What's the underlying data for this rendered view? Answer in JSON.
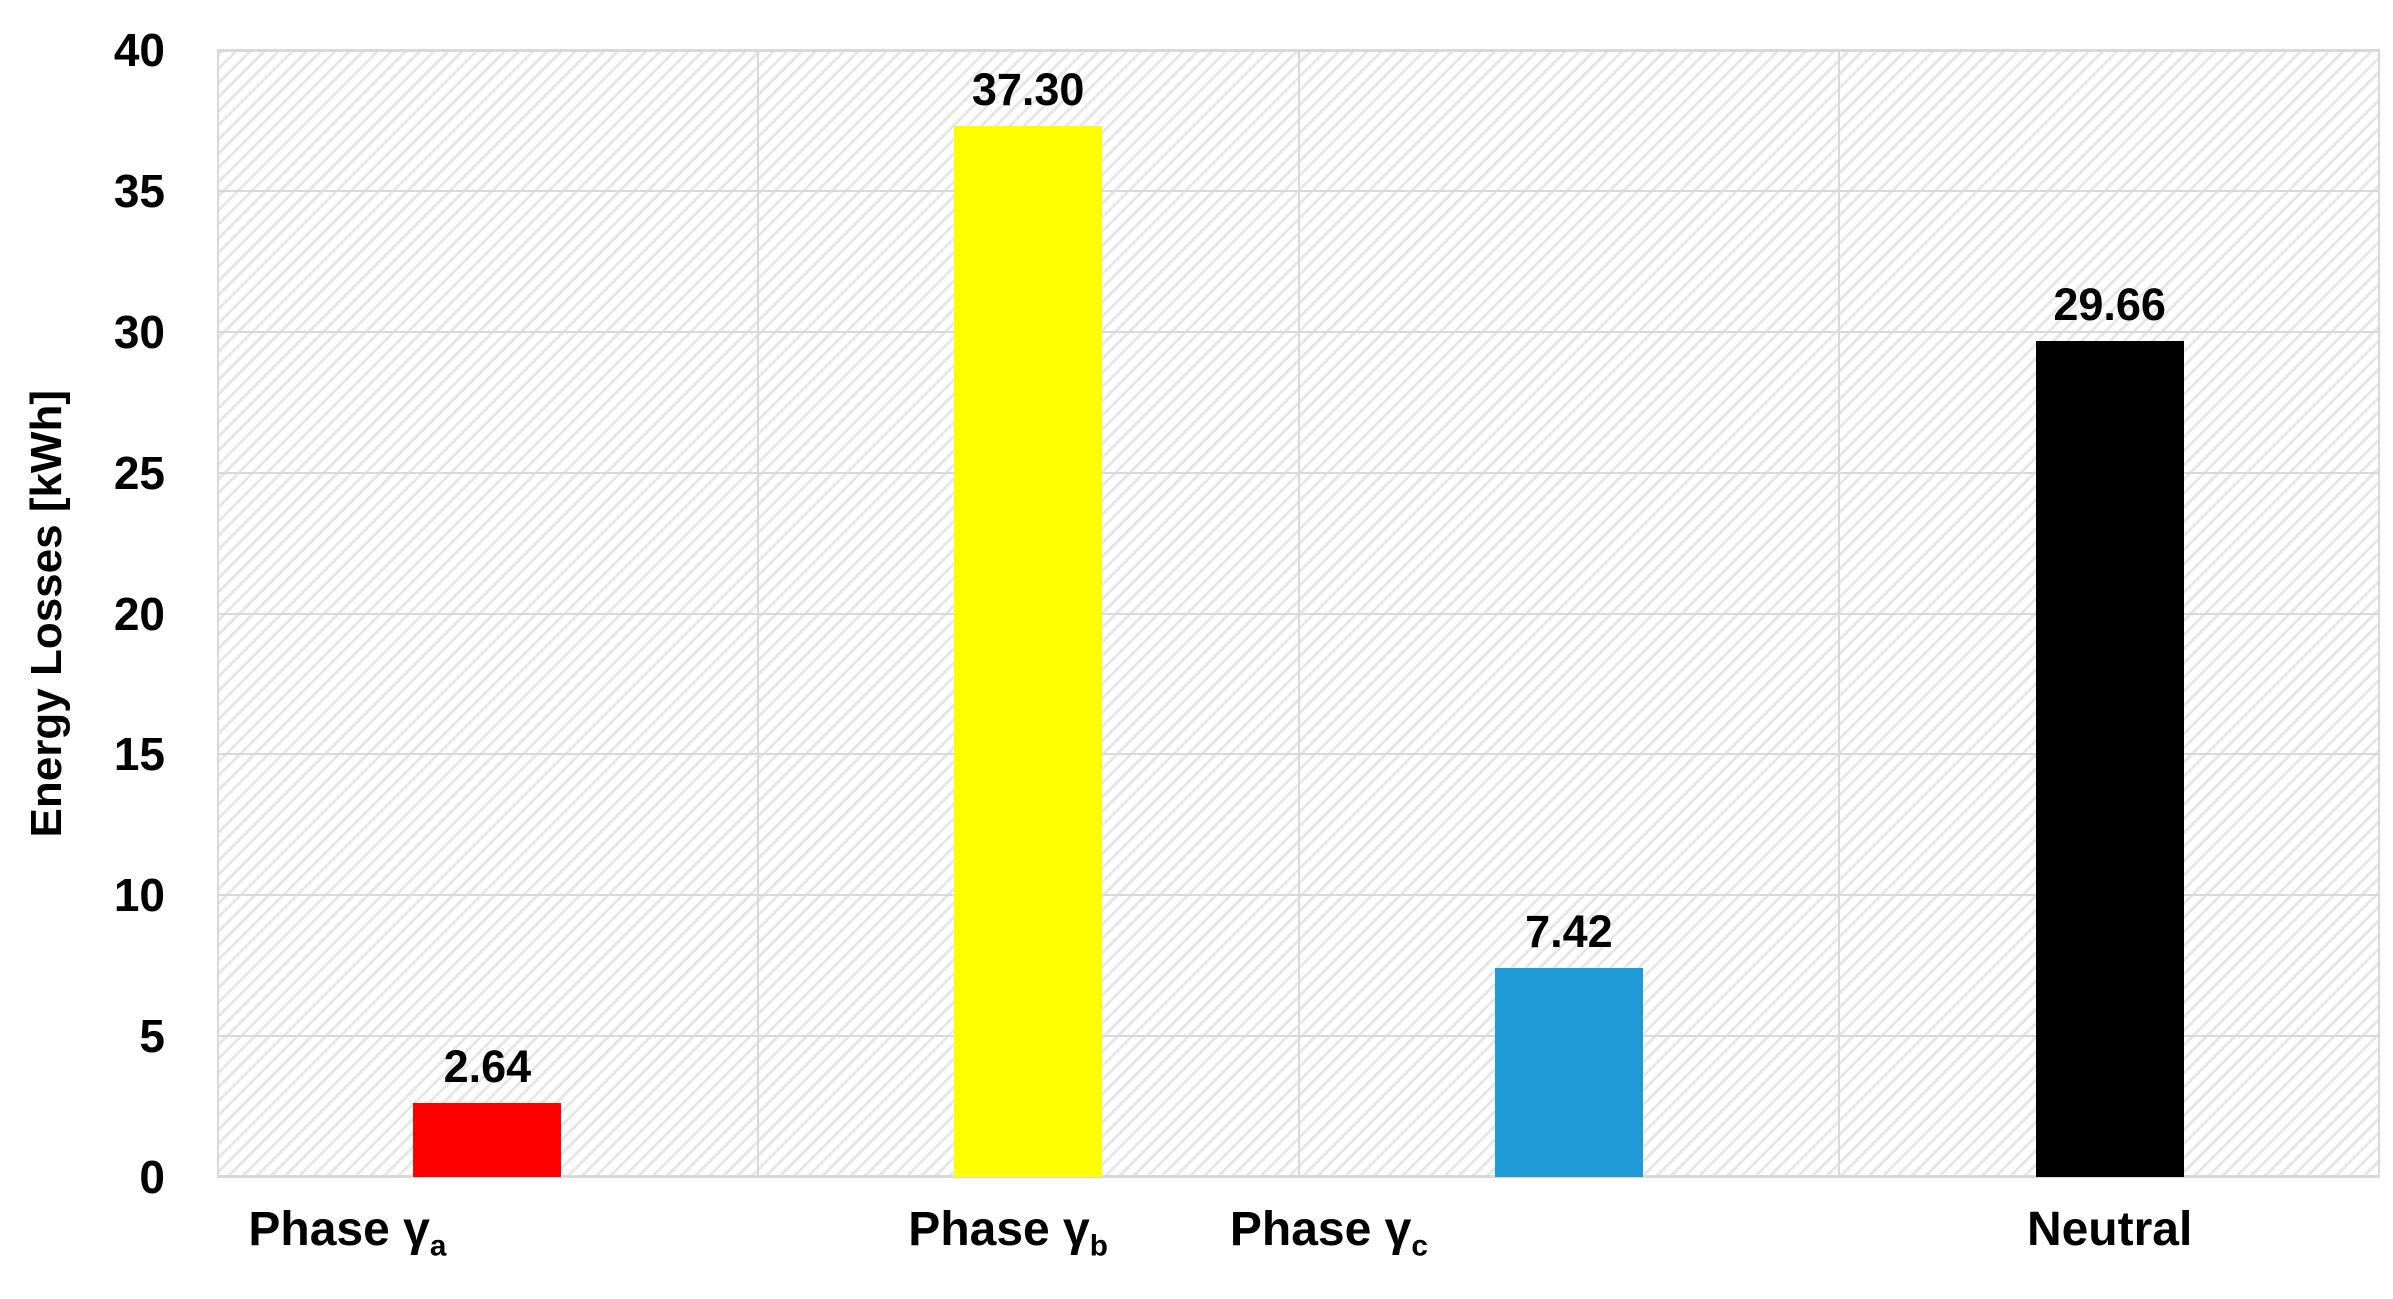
{
  "chart_data": {
    "type": "bar",
    "title": "",
    "xlabel": "",
    "ylabel": "Energy Losses [kWh]",
    "ylim": [
      0,
      40
    ],
    "ytick_step": 5,
    "yticks": [
      "0",
      "5",
      "10",
      "15",
      "20",
      "25",
      "30",
      "35",
      "40"
    ],
    "grid": "horizontal major gridlines + vertical category-boundary gridlines, light gray; plot area filled with light diagonal hatch pattern",
    "legend": "none",
    "categories": [
      {
        "text": "Phase γ",
        "sub": "a"
      },
      {
        "text": "Phase γ",
        "sub": "b"
      },
      {
        "text": "Phase γ",
        "sub": "c"
      },
      {
        "text": "Neutral",
        "sub": ""
      }
    ],
    "values": [
      2.64,
      37.3,
      7.42,
      29.66
    ],
    "value_labels": [
      "2.64",
      "37.30",
      "7.42",
      "29.66"
    ],
    "bar_colors": [
      "#fe0000",
      "#ffff00",
      "#1f9ad7",
      "#000000"
    ],
    "colors": {
      "gridline": "#d9d9d9",
      "plot_border": "#d9d9d9",
      "hatch_line": "#e7e7e7",
      "text": "#000000",
      "background": "#ffffff"
    }
  }
}
